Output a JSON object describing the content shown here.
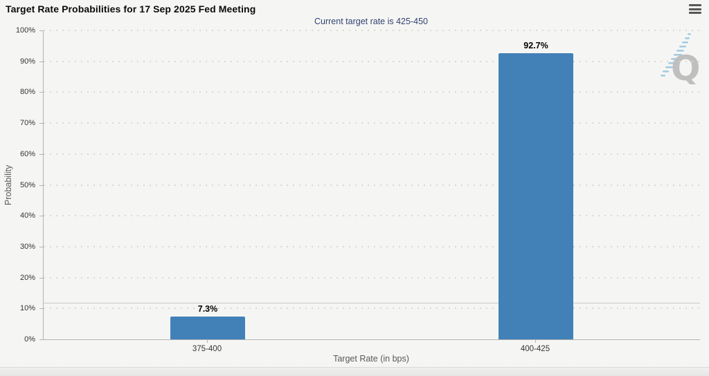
{
  "header": {
    "title": "Target Rate Probabilities for 17 Sep 2025 Fed Meeting",
    "subtitle": "Current target rate is 425-450"
  },
  "chart_data": {
    "type": "bar",
    "title": "Target Rate Probabilities for 17 Sep 2025 Fed Meeting",
    "subtitle": "Current target rate is 425-450",
    "categories": [
      "375-400",
      "400-425"
    ],
    "values": [
      7.3,
      92.7
    ],
    "value_labels": [
      "7.3%",
      "92.7%"
    ],
    "xlabel": "Target Rate (in bps)",
    "ylabel": "Probability",
    "ylim": [
      0,
      100
    ],
    "ytick_step": 10,
    "ytick_suffix": "%",
    "grid": "dotted horizontal gridlines",
    "legend": "none",
    "bar_color": "#4281b8"
  },
  "icons": {
    "menu": "hamburger-icon",
    "watermark": "quikstrike-q-logo"
  },
  "colors": {
    "background": "#f5f6f4",
    "bar": "#4281b8",
    "subtitle_text": "#334271",
    "axis_line": "#b3b3b1",
    "grid_dot": "#d8d8d5",
    "tick_label": "#333333",
    "axis_title": "#585858",
    "data_label": "#000000"
  }
}
